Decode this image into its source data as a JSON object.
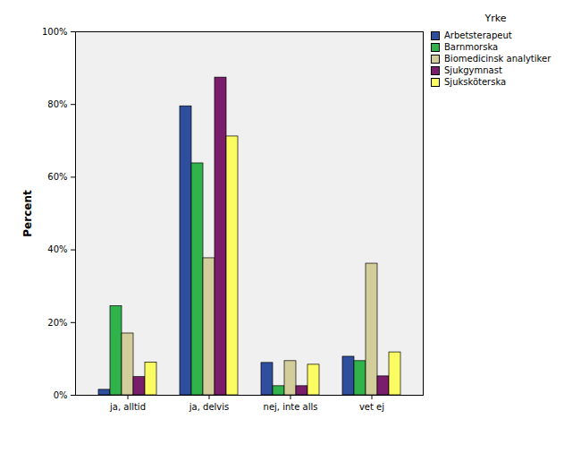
{
  "chart_data": {
    "type": "bar",
    "y_label": "Percent",
    "legend_title": "Yrke",
    "legend": "right",
    "categories": [
      "ja, alltid",
      "ja, delvis",
      "nej, inte alls",
      "vet ej"
    ],
    "series": [
      {
        "name": "Arbetsterapeut",
        "color": "#2f4e9e",
        "values": [
          1.5,
          79.5,
          8.9,
          10.6
        ]
      },
      {
        "name": "Barnmorska",
        "color": "#2fb34a",
        "values": [
          24.5,
          63.8,
          2.5,
          9.4
        ]
      },
      {
        "name": "Biomedicinsk analytiker",
        "color": "#d3cd9b",
        "values": [
          17,
          37.7,
          9.4,
          36.2
        ]
      },
      {
        "name": "Sjukgymnast",
        "color": "#7a1e6c",
        "values": [
          5,
          87.4,
          2.5,
          5.2
        ]
      },
      {
        "name": "Sjuksköterska",
        "color": "#fbfb62",
        "values": [
          9,
          71.2,
          8.4,
          11.8
        ]
      }
    ],
    "ylim": [
      0,
      100
    ],
    "yticks": [
      {
        "value": 0,
        "label": "0%"
      },
      {
        "value": 20,
        "label": "20%"
      },
      {
        "value": 40,
        "label": "40%"
      },
      {
        "value": 60,
        "label": "60%"
      },
      {
        "value": 80,
        "label": "80%"
      },
      {
        "value": 100,
        "label": "100%"
      }
    ],
    "grid": false
  }
}
